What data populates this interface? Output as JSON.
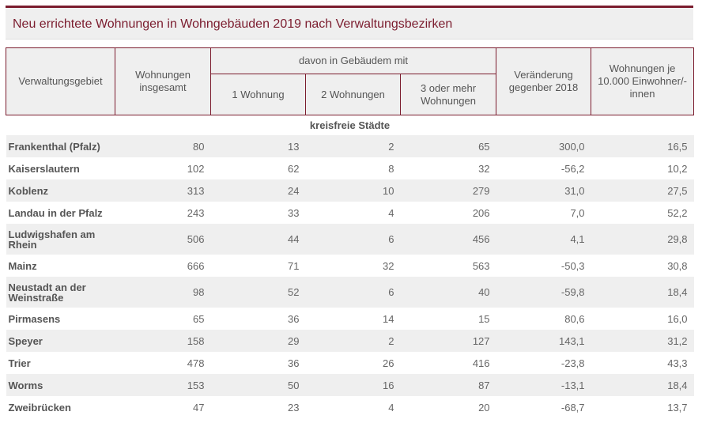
{
  "title": "Neu errichtete Wohnungen in Wohngebäuden 2019 nach Verwaltungsbezirken",
  "headers": {
    "gebiet": "Verwaltungsgebiet",
    "insgesamt": "Wohnungen insgesamt",
    "davon": "davon in Gebäudem mit",
    "w1": "1 Wohnung",
    "w2": "2 Wohnungen",
    "w3": "3 oder mehr Wohnungen",
    "veraenderung": "Veränderung gegenber 2018",
    "je10000": "Wohnungen je 10.000 Einwohner/-innen"
  },
  "section": "kreisfreie Städte",
  "rows": [
    [
      "Frankenthal (Pfalz)",
      "80",
      "13",
      "2",
      "65",
      "300,0",
      "16,5"
    ],
    [
      "Kaiserslautern",
      "102",
      "62",
      "8",
      "32",
      "-56,2",
      "10,2"
    ],
    [
      "Koblenz",
      "313",
      "24",
      "10",
      "279",
      "31,0",
      "27,5"
    ],
    [
      "Landau in der Pfalz",
      "243",
      "33",
      "4",
      "206",
      "7,0",
      "52,2"
    ],
    [
      "Ludwigshafen am Rhein",
      "506",
      "44",
      "6",
      "456",
      "4,1",
      "29,8"
    ],
    [
      "Mainz",
      "666",
      "71",
      "32",
      "563",
      "-50,3",
      "30,8"
    ],
    [
      "Neustadt an der Weinstraße",
      "98",
      "52",
      "6",
      "40",
      "-59,8",
      "18,4"
    ],
    [
      "Pirmasens",
      "65",
      "36",
      "14",
      "15",
      "80,6",
      "16,0"
    ],
    [
      "Speyer",
      "158",
      "29",
      "2",
      "127",
      "143,1",
      "31,2"
    ],
    [
      "Trier",
      "478",
      "36",
      "26",
      "416",
      "-23,8",
      "43,3"
    ],
    [
      "Worms",
      "153",
      "50",
      "16",
      "87",
      "-13,1",
      "18,4"
    ],
    [
      "Zweibrücken",
      "47",
      "23",
      "4",
      "20",
      "-68,7",
      "13,7"
    ]
  ]
}
